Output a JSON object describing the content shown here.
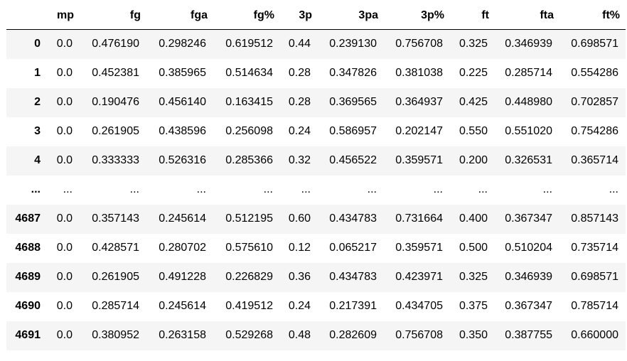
{
  "table": {
    "index_header": "",
    "columns": [
      "mp",
      "fg",
      "fga",
      "fg%",
      "3p",
      "3pa",
      "3p%",
      "ft",
      "fta",
      "ft%"
    ],
    "rows": [
      {
        "index": "0",
        "cells": [
          "0.0",
          "0.476190",
          "0.298246",
          "0.619512",
          "0.44",
          "0.239130",
          "0.756708",
          "0.325",
          "0.346939",
          "0.698571"
        ]
      },
      {
        "index": "1",
        "cells": [
          "0.0",
          "0.452381",
          "0.385965",
          "0.514634",
          "0.28",
          "0.347826",
          "0.381038",
          "0.225",
          "0.285714",
          "0.554286"
        ]
      },
      {
        "index": "2",
        "cells": [
          "0.0",
          "0.190476",
          "0.456140",
          "0.163415",
          "0.28",
          "0.369565",
          "0.364937",
          "0.425",
          "0.448980",
          "0.702857"
        ]
      },
      {
        "index": "3",
        "cells": [
          "0.0",
          "0.261905",
          "0.438596",
          "0.256098",
          "0.24",
          "0.586957",
          "0.202147",
          "0.550",
          "0.551020",
          "0.754286"
        ]
      },
      {
        "index": "4",
        "cells": [
          "0.0",
          "0.333333",
          "0.526316",
          "0.285366",
          "0.32",
          "0.456522",
          "0.359571",
          "0.200",
          "0.326531",
          "0.365714"
        ]
      },
      {
        "index": "...",
        "cells": [
          "...",
          "...",
          "...",
          "...",
          "...",
          "...",
          "...",
          "...",
          "...",
          "..."
        ]
      },
      {
        "index": "4687",
        "cells": [
          "0.0",
          "0.357143",
          "0.245614",
          "0.512195",
          "0.60",
          "0.434783",
          "0.731664",
          "0.400",
          "0.367347",
          "0.857143"
        ]
      },
      {
        "index": "4688",
        "cells": [
          "0.0",
          "0.428571",
          "0.280702",
          "0.575610",
          "0.12",
          "0.065217",
          "0.359571",
          "0.500",
          "0.510204",
          "0.735714"
        ]
      },
      {
        "index": "4689",
        "cells": [
          "0.0",
          "0.261905",
          "0.491228",
          "0.226829",
          "0.36",
          "0.434783",
          "0.423971",
          "0.325",
          "0.346939",
          "0.698571"
        ]
      },
      {
        "index": "4690",
        "cells": [
          "0.0",
          "0.285714",
          "0.245614",
          "0.419512",
          "0.24",
          "0.217391",
          "0.434705",
          "0.375",
          "0.367347",
          "0.785714"
        ]
      },
      {
        "index": "4691",
        "cells": [
          "0.0",
          "0.380952",
          "0.263158",
          "0.529268",
          "0.48",
          "0.282609",
          "0.756708",
          "0.350",
          "0.387755",
          "0.660000"
        ]
      }
    ]
  },
  "colors": {
    "stripe": "#f5f5f5",
    "background": "#ffffff",
    "header_rule": "#000000"
  }
}
